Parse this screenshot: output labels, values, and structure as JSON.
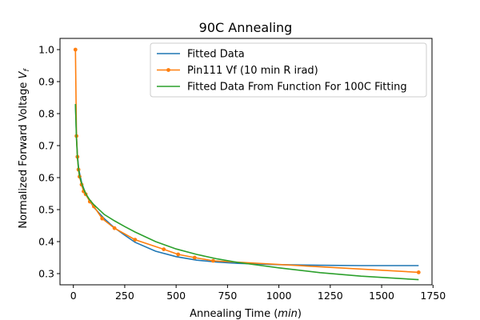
{
  "chart_data": {
    "type": "line",
    "title": "90C Annealing",
    "xlabel": "Annealing Time (min)",
    "ylabel": "Normalized Forward Voltage V_f",
    "xlim": [
      -65,
      1745
    ],
    "ylim": [
      0.265,
      1.035
    ],
    "x_ticks": [
      0,
      250,
      500,
      750,
      1000,
      1250,
      1500,
      1750
    ],
    "y_ticks": [
      0.3,
      0.4,
      0.5,
      0.6,
      0.7,
      0.8,
      0.9,
      1.0
    ],
    "y_tick_labels": [
      "0.3",
      "0.4",
      "0.5",
      "0.6",
      "0.7",
      "0.8",
      "0.9",
      "1.0"
    ],
    "grid": false,
    "legend_position": "top-right",
    "series": [
      {
        "name": "Fitted Data",
        "color": "#1f77b4",
        "marker": "none",
        "x": [
          10,
          15,
          20,
          25,
          30,
          40,
          50,
          60,
          80,
          100,
          150,
          200,
          250,
          300,
          400,
          500,
          600,
          700,
          800,
          1000,
          1200,
          1400,
          1680
        ],
        "y": [
          0.83,
          0.73,
          0.67,
          0.635,
          0.615,
          0.585,
          0.567,
          0.55,
          0.526,
          0.507,
          0.472,
          0.443,
          0.42,
          0.398,
          0.37,
          0.353,
          0.342,
          0.336,
          0.332,
          0.328,
          0.326,
          0.325,
          0.325
        ]
      },
      {
        "name": "Pin111 Vf (10 min R irad)",
        "color": "#ff7f0e",
        "marker": "circle",
        "x": [
          10,
          15,
          20,
          25,
          30,
          40,
          50,
          60,
          80,
          100,
          140,
          200,
          300,
          440,
          510,
          590,
          680,
          1680
        ],
        "y": [
          1.0,
          0.73,
          0.665,
          0.625,
          0.603,
          0.578,
          0.557,
          0.548,
          0.525,
          0.51,
          0.472,
          0.442,
          0.406,
          0.376,
          0.36,
          0.35,
          0.34,
          0.304
        ]
      },
      {
        "name": "Fitted Data From Function For 100C Fitting",
        "color": "#2ca02c",
        "marker": "none",
        "x": [
          10,
          15,
          20,
          25,
          30,
          40,
          50,
          60,
          80,
          100,
          150,
          200,
          250,
          300,
          400,
          500,
          600,
          700,
          800,
          1000,
          1200,
          1400,
          1680
        ],
        "y": [
          0.83,
          0.72,
          0.663,
          0.628,
          0.606,
          0.582,
          0.565,
          0.55,
          0.53,
          0.515,
          0.485,
          0.465,
          0.447,
          0.43,
          0.4,
          0.377,
          0.36,
          0.346,
          0.335,
          0.318,
          0.303,
          0.292,
          0.281
        ]
      }
    ]
  }
}
